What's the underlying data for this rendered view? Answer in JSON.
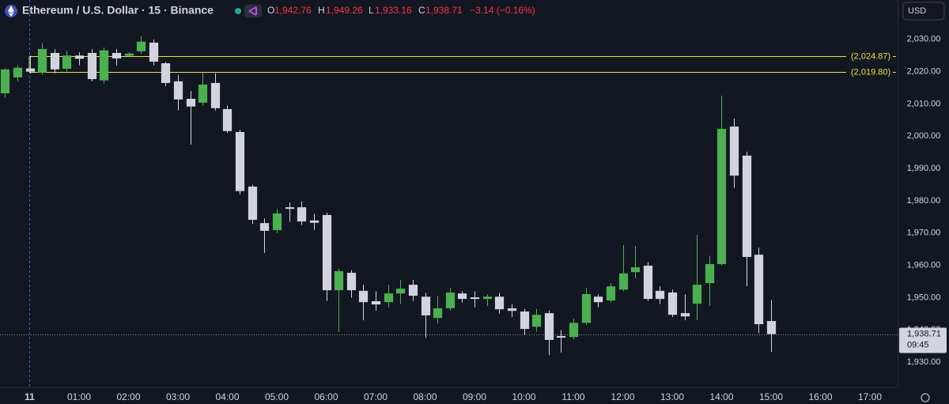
{
  "chart_data": {
    "type": "candlestick",
    "title": "Ethereum / U.S. Dollar · 15 · Binance",
    "legend": {
      "o": "O",
      "open": "1,942.76",
      "h": "H",
      "high": "1,949.26",
      "l": "L",
      "low": "1,933.16",
      "c": "C",
      "close": "1,938.71",
      "change": "−3.14 (−0.16%)"
    },
    "currency": "USD",
    "up_color": "#4caf50",
    "down_color": "#d1d4dc",
    "x": [
      -0.5,
      -0.25,
      0,
      0.25,
      0.5,
      0.75,
      1,
      1.25,
      1.5,
      1.75,
      2,
      2.25,
      2.5,
      2.75,
      3,
      3.25,
      3.5,
      3.75,
      4,
      4.25,
      4.5,
      4.75,
      5,
      5.25,
      5.5,
      5.75,
      6,
      6.25,
      6.5,
      6.75,
      7,
      7.25,
      7.5,
      7.75,
      8,
      8.25,
      8.5,
      8.75,
      9,
      9.25,
      9.5,
      9.75,
      10,
      10.25,
      10.5,
      10.75,
      11,
      11.25,
      11.5,
      11.75,
      12,
      12.25,
      12.5,
      12.75,
      13,
      13.25,
      13.5,
      13.75,
      14,
      14.25,
      14.5,
      14.75,
      15
    ],
    "open": [
      2013.3,
      2018.2,
      2021,
      2019.7,
      2025.8,
      2020.9,
      2025,
      2025.8,
      2017.3,
      2025.8,
      2024.9,
      2026.3,
      2029,
      2022.6,
      2017,
      2011.6,
      2010.4,
      2016.5,
      2008.4,
      2001.3,
      1984.4,
      1973.1,
      1970.9,
      1978,
      1978,
      1973.9,
      1975.6,
      1952.3,
      1957.7,
      1952.1,
      1948.9,
      1948.6,
      1951.3,
      1954,
      1950.3,
      1943.7,
      1946.7,
      1951.3,
      1950.1,
      1949.6,
      1950.3,
      1946.7,
      1945.7,
      1941,
      1945.2,
      1938.1,
      1937.8,
      1942.2,
      1950.3,
      1949.1,
      1952.5,
      1957.9,
      1959.9,
      1952.1,
      1951.6,
      1945.2,
      1948.1,
      1954.5,
      1960.4,
      2003,
      1994,
      1963.3,
      1942.76
    ],
    "high": [
      2021,
      2022,
      2025,
      2029,
      2027,
      2026.5,
      2026,
      2027,
      2027.5,
      2027,
      2026,
      2031,
      2030,
      2023,
      2019,
      2014,
      2019.7,
      2019.5,
      2009.5,
      2002,
      1985,
      1974.5,
      1977.5,
      1979.5,
      1979.8,
      1976,
      1976.3,
      1959,
      1958.5,
      1954,
      1952,
      1954,
      1955.5,
      1955.5,
      1951.5,
      1950.5,
      1953,
      1952,
      1952,
      1951,
      1951.5,
      1948,
      1946.5,
      1946.5,
      1946,
      1940,
      1943.5,
      1953,
      1951,
      1954.5,
      1966.3,
      1966,
      1961,
      1953.5,
      1952.5,
      1951,
      1969.5,
      1963,
      2012.6,
      2005.5,
      1995.2,
      1965.5,
      1949.26
    ],
    "low": [
      2012,
      2017,
      2019.5,
      2019,
      2019.5,
      2019.5,
      2022,
      2017,
      2016.5,
      2022,
      2024.5,
      2025.5,
      2022,
      2015.5,
      2008,
      1997.4,
      2009.5,
      2008,
      2001,
      1982,
      1972.8,
      1963.8,
      1970,
      1973.5,
      1972.5,
      1971,
      1949,
      1939.3,
      1950,
      1943,
      1946,
      1947,
      1948,
      1949,
      1937.5,
      1942,
      1946,
      1948.5,
      1947,
      1947.5,
      1945,
      1944,
      1938.5,
      1939.5,
      1932.2,
      1933,
      1937,
      1941.5,
      1947,
      1948.5,
      1952,
      1956,
      1949,
      1948,
      1944,
      1943,
      1943,
      1947.5,
      1960,
      1984,
      1953.5,
      1939,
      1933.16
    ],
    "close": [
      2020.7,
      2021.2,
      2020,
      2027,
      2020.7,
      2025,
      2024,
      2017.7,
      2026.6,
      2024.1,
      2025.6,
      2029.3,
      2023.1,
      2016.5,
      2011.4,
      2009.2,
      2016,
      2008.7,
      2001.6,
      1983,
      1974.1,
      1970.7,
      1976.1,
      1977.5,
      1973.6,
      1973.2,
      1952.3,
      1958.2,
      1952.3,
      1948.6,
      1947.9,
      1951.3,
      1952.8,
      1950.6,
      1944.5,
      1946.7,
      1951.6,
      1949.6,
      1949.6,
      1950.3,
      1946.4,
      1945.9,
      1940.3,
      1944.7,
      1936.9,
      1937.6,
      1942.2,
      1951.1,
      1948.6,
      1953.5,
      1957.5,
      1959.4,
      1949.6,
      1949.6,
      1944.7,
      1944.2,
      1954,
      1960.4,
      2002.3,
      1987.8,
      1962.6,
      1941.8,
      1938.71
    ],
    "xlim": [
      -0.6,
      17.56
    ],
    "xticks": [
      {
        "value": 0,
        "label": "11"
      },
      {
        "value": 1,
        "label": "01:00"
      },
      {
        "value": 2,
        "label": "02:00"
      },
      {
        "value": 3,
        "label": "03:00"
      },
      {
        "value": 4,
        "label": "04:00"
      },
      {
        "value": 5,
        "label": "05:00"
      },
      {
        "value": 6,
        "label": "06:00"
      },
      {
        "value": 7,
        "label": "07:00"
      },
      {
        "value": 8,
        "label": "08:00"
      },
      {
        "value": 9,
        "label": "09:00"
      },
      {
        "value": 10,
        "label": "10:00"
      },
      {
        "value": 11,
        "label": "11:00"
      },
      {
        "value": 12,
        "label": "12:00"
      },
      {
        "value": 13,
        "label": "13:00"
      },
      {
        "value": 14,
        "label": "14:00"
      },
      {
        "value": 15,
        "label": "15:00"
      },
      {
        "value": 16,
        "label": "16:00"
      },
      {
        "value": 17,
        "label": "17:00"
      }
    ],
    "ylim": [
      1922.2,
      2042.2
    ],
    "yticks": [
      {
        "value": 1930,
        "label": "1,930.00"
      },
      {
        "value": 1940,
        "label": "1,940.00"
      },
      {
        "value": 1950,
        "label": "1,950.00"
      },
      {
        "value": 1960,
        "label": "1,960.00"
      },
      {
        "value": 1970,
        "label": "1,970.00"
      },
      {
        "value": 1980,
        "label": "1,980.00"
      },
      {
        "value": 1990,
        "label": "1,990.00"
      },
      {
        "value": 2000,
        "label": "2,000.00"
      },
      {
        "value": 2010,
        "label": "2,010.00"
      },
      {
        "value": 2020,
        "label": "2,020.00"
      },
      {
        "value": 2030,
        "label": "2,030.00"
      }
    ],
    "grid": false,
    "hlines": [
      {
        "value": 2024.87,
        "label": "(2,024.87)",
        "color": "#e8e04a"
      },
      {
        "value": 2019.8,
        "label": "(2,019.80)",
        "color": "#e8e04a"
      }
    ],
    "price_tag": {
      "value": 1938.71,
      "label": "1,938.71",
      "countdown": "09:45"
    }
  }
}
